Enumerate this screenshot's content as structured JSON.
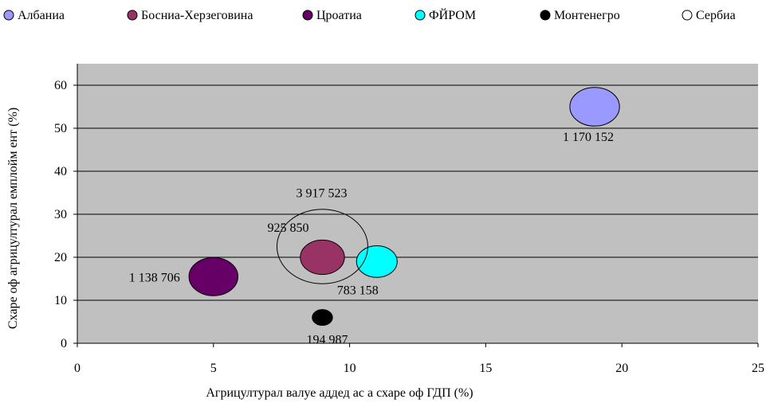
{
  "chart_data": {
    "type": "bubble",
    "title": "",
    "xlabel": "Агрицултурал валуе аддед ас а схаре оф ГДП (%)",
    "ylabel": "Схаре оф агрицултурал емплойм ент (%)",
    "xlim": [
      0,
      25
    ],
    "ylim": [
      0,
      65
    ],
    "x_ticks": [
      0,
      5,
      10,
      15,
      20,
      25
    ],
    "y_ticks": [
      0,
      10,
      20,
      30,
      40,
      50,
      60
    ],
    "grid": "horizontal",
    "legend_position": "top",
    "series": [
      {
        "name": "Албаниа",
        "x": 19,
        "y": 55,
        "size": 1170152,
        "label": "1 170 152",
        "color": "#9999ff",
        "filled": true
      },
      {
        "name": "Босниа-Херзеговина",
        "x": 9,
        "y": 20,
        "size": 925850,
        "label": "925 850",
        "color": "#993366",
        "filled": true
      },
      {
        "name": "Цроатиа",
        "x": 5,
        "y": 15.5,
        "size": 1138706,
        "label": "1 138 706",
        "color": "#660066",
        "filled": true
      },
      {
        "name": "ФЙРОМ",
        "x": 11,
        "y": 19,
        "size": 783158,
        "label": "783 158",
        "color": "#00ffff",
        "filled": true
      },
      {
        "name": "Монтенегро",
        "x": 9,
        "y": 6,
        "size": 194987,
        "label": "194 987",
        "color": "#000000",
        "filled": true
      },
      {
        "name": "Сербиа",
        "x": 9,
        "y": 22.5,
        "size": 3917523,
        "label": "3 917 523",
        "color": "#000000",
        "filled": false
      }
    ]
  }
}
